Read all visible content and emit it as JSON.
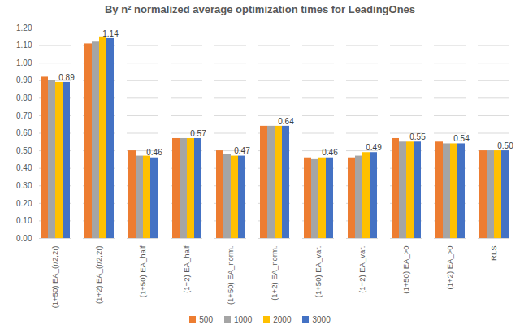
{
  "chart_data": {
    "type": "bar",
    "title": "By n² normalized average optimization times for LeadingOnes",
    "categories": [
      "(1+50) EA_(r/2,2r)",
      "(1+2) EA_(r/2,2r)",
      "(1+50) EA_half",
      "(1+2) EA_half",
      "(1+50) EA_norm.",
      "(1+2) EA_norm.",
      "(1+50) EA_var.",
      "(1+2) EA_var.",
      "(1+50) EA_>0",
      "(1+2) EA_>0",
      "RLS"
    ],
    "series": [
      {
        "name": "500",
        "color": "#ED7D31",
        "values": [
          0.92,
          1.11,
          0.5,
          0.57,
          0.5,
          0.64,
          0.46,
          0.46,
          0.57,
          0.55,
          0.5
        ]
      },
      {
        "name": "1000",
        "color": "#A5A5A5",
        "values": [
          0.9,
          1.12,
          0.47,
          0.57,
          0.48,
          0.64,
          0.45,
          0.47,
          0.55,
          0.54,
          0.5
        ]
      },
      {
        "name": "2000",
        "color": "#FFC000",
        "values": [
          0.89,
          1.15,
          0.47,
          0.57,
          0.47,
          0.64,
          0.46,
          0.49,
          0.55,
          0.54,
          0.5
        ]
      },
      {
        "name": "3000",
        "color": "#4472C4",
        "values": [
          0.89,
          1.14,
          0.46,
          0.57,
          0.47,
          0.64,
          0.46,
          0.49,
          0.55,
          0.54,
          0.5
        ],
        "data_labels": true,
        "value_labels": [
          "0.89",
          "1.14",
          "0.46",
          "0.57",
          "0.47",
          "0.64",
          "0.46",
          "0.49",
          "0.55",
          "0.54",
          "0.50"
        ]
      }
    ],
    "ylim": [
      0,
      1.2
    ],
    "yticks": [
      {
        "value": 0,
        "label": "0.00"
      },
      {
        "value": 0.1,
        "label": "0.10"
      },
      {
        "value": 0.2,
        "label": "0.20"
      },
      {
        "value": 0.3,
        "label": "0.30"
      },
      {
        "value": 0.4,
        "label": "0.40"
      },
      {
        "value": 0.5,
        "label": "0.50"
      },
      {
        "value": 0.6,
        "label": "0.60"
      },
      {
        "value": 0.7,
        "label": "0.70"
      },
      {
        "value": 0.8,
        "label": "0.80"
      },
      {
        "value": 0.9,
        "label": "0.90"
      },
      {
        "value": 1.0,
        "label": "1.00"
      },
      {
        "value": 1.1,
        "label": "1.10"
      },
      {
        "value": 1.2,
        "label": "1.20"
      }
    ],
    "grid": true,
    "legend": "bottom"
  }
}
